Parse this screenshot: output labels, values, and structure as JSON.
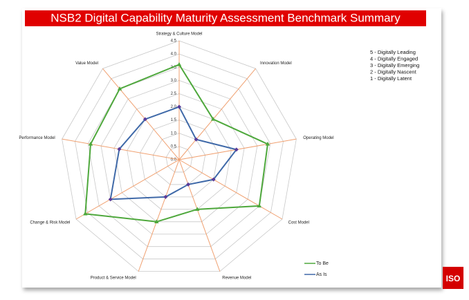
{
  "chart_data": {
    "type": "radar",
    "title": "NSB2 Digital Capability Maturity Assessment Benchmark Summary",
    "categories": [
      "Strategy & Culture Model",
      "Innovation Model",
      "Operating Model",
      "Cost Model",
      "Revenue Model",
      "Product & Service Model",
      "Change & Risk Model",
      "Performance Model",
      "Value Model"
    ],
    "series": [
      {
        "name": "To Be",
        "color": "#4ea83c",
        "marker": "triangle",
        "values": [
          3.6,
          2.0,
          3.4,
          3.5,
          2.0,
          2.5,
          4.1,
          3.4,
          3.5
        ]
      },
      {
        "name": "As Is",
        "color": "#3f69a8",
        "marker": "diamond",
        "values": [
          2.0,
          1.0,
          2.2,
          1.5,
          1.0,
          1.5,
          3.0,
          2.3,
          2.0
        ]
      }
    ],
    "ylim": [
      0,
      4.5
    ],
    "yticks": [
      {
        "value": 0,
        "label": "0.0"
      },
      {
        "value": 0.5,
        "label": "0.5"
      },
      {
        "value": 1,
        "label": "1.0"
      },
      {
        "value": 1.5,
        "label": "1.5"
      },
      {
        "value": 2,
        "label": "2.0"
      },
      {
        "value": 2.5,
        "label": "2.5"
      },
      {
        "value": 3,
        "label": "3.0"
      },
      {
        "value": 3.5,
        "label": "3.5"
      },
      {
        "value": 4,
        "label": "4.0"
      },
      {
        "value": 4.5,
        "label": "4.5"
      }
    ],
    "grid": true,
    "annotations": [
      "5 - Digitally Leading",
      "4 - Digitally Engaged",
      "3 - Digitally Emerging",
      "2 - Digitally Nascent",
      "1 - Digitally Latent"
    ]
  },
  "logo_text": "ISO"
}
